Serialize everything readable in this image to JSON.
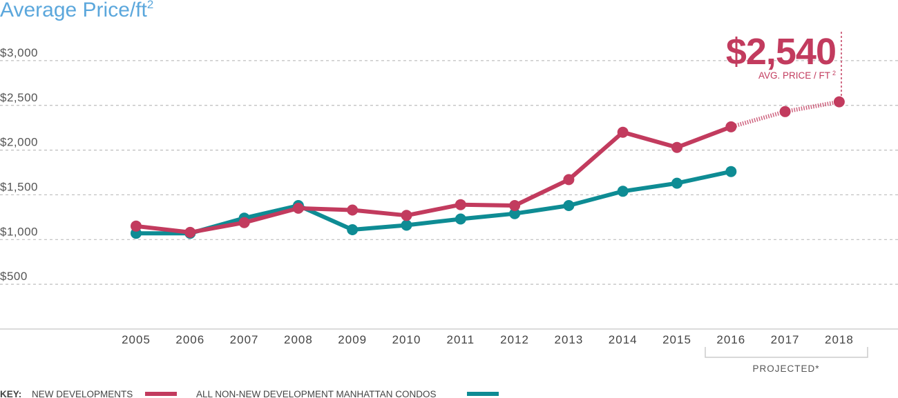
{
  "chart_data": {
    "type": "line",
    "title": "Average Price/ft",
    "title_superscript": "2",
    "x": [
      "2005",
      "2006",
      "2007",
      "2008",
      "2009",
      "2010",
      "2011",
      "2012",
      "2013",
      "2014",
      "2015",
      "2016",
      "2017",
      "2018"
    ],
    "y_ticks": [
      "$500",
      "$1,000",
      "$1,500",
      "$2,000",
      "$2,500",
      "$3,000"
    ],
    "y_tick_values": [
      500,
      1000,
      1500,
      2000,
      2500,
      3000
    ],
    "ylim": [
      0,
      3000
    ],
    "grid": true,
    "series": [
      {
        "name": "NEW DEVELOPMENTS",
        "color": "#c23b5e",
        "values": [
          1150,
          1080,
          1190,
          1350,
          1330,
          1270,
          1390,
          1380,
          1670,
          2200,
          2030,
          2260,
          2430,
          2540
        ],
        "projected_from": "2016"
      },
      {
        "name": "ALL NON-NEW DEVELOPMENT MANHATTAN CONDOS",
        "color": "#0e8c94",
        "values": [
          1070,
          1070,
          1240,
          1380,
          1110,
          1160,
          1230,
          1290,
          1380,
          1540,
          1630,
          1760,
          null,
          null
        ]
      }
    ],
    "annotations": {
      "callout_value": "$2,540",
      "callout_label": "AVG. PRICE / FT",
      "callout_label_superscript": "2",
      "projected_label": "PROJECTED*",
      "projected_range": [
        "2016",
        "2018"
      ]
    }
  },
  "key": {
    "heading": "KEY:",
    "new_dev_label": "NEW DEVELOPMENTS",
    "condo_label": "ALL NON-NEW DEVELOPMENT MANHATTAN CONDOS"
  }
}
